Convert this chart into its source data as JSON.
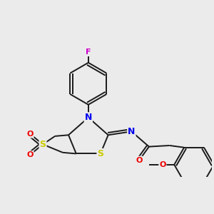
{
  "background_color": "#ebebeb",
  "bond_color": "#1a1a1a",
  "atom_colors": {
    "N": "#0000ee",
    "S": "#cccc00",
    "O": "#ee0000",
    "F": "#cc00cc",
    "C": "#1a1a1a"
  },
  "lw": 1.4,
  "fontsize": 8
}
